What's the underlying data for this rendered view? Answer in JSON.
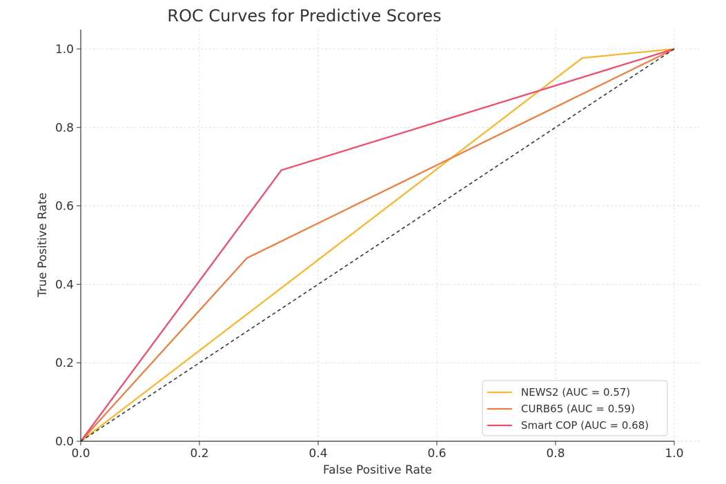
{
  "chart_data": {
    "type": "line",
    "title": "ROC Curves for Predictive Scores",
    "xlabel": "False Positive Rate",
    "ylabel": "True Positive Rate",
    "xlim": [
      0,
      1
    ],
    "ylim": [
      0,
      1
    ],
    "xticks": [
      "0.0",
      "0.2",
      "0.4",
      "0.6",
      "0.8",
      "1.0"
    ],
    "yticks": [
      "0.0",
      "0.2",
      "0.4",
      "0.6",
      "0.8",
      "1.0"
    ],
    "grid": true,
    "legend_position": "bottom-right",
    "series": [
      {
        "name": "NEWS2 (AUC = 0.57)",
        "color": "#FBB630",
        "x": [
          0,
          0.845,
          1
        ],
        "y": [
          0,
          0.977,
          1
        ]
      },
      {
        "name": "CURB65 (AUC = 0.59)",
        "color": "#F07D3F",
        "x": [
          0,
          0.28,
          1
        ],
        "y": [
          0,
          0.467,
          1
        ]
      },
      {
        "name": "Smart COP (AUC = 0.68)",
        "color": "#EE4C6C",
        "x": [
          0,
          0.338,
          1
        ],
        "y": [
          0,
          0.691,
          1
        ]
      }
    ],
    "reference_line": {
      "x": [
        0,
        1
      ],
      "y": [
        0,
        1
      ],
      "color": "#333333",
      "style": "dashed"
    }
  }
}
